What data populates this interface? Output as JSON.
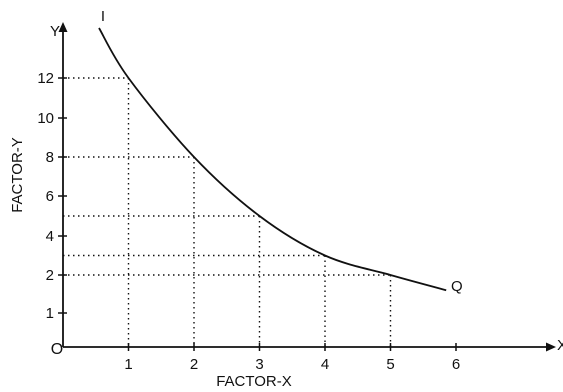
{
  "chart_data": {
    "type": "line",
    "title": "",
    "xlabel": "FACTOR-X",
    "ylabel": "FACTOR-Y",
    "x_axis_letter": "X",
    "y_axis_letter": "Y",
    "origin_label": "O",
    "x_ticks": [
      1,
      2,
      3,
      4,
      5,
      6
    ],
    "x_tick_labels": [
      "1",
      "2",
      "3",
      "4",
      "5",
      "6"
    ],
    "y_ticks": [
      {
        "label": "1",
        "value": 1
      },
      {
        "label": "2",
        "value": 2
      },
      {
        "label": "4",
        "value": 4
      },
      {
        "label": "6",
        "value": 6
      },
      {
        "label": "8",
        "value": 8
      },
      {
        "label": "10",
        "value": 10
      },
      {
        "label": "12",
        "value": 12
      }
    ],
    "series": [
      {
        "name": "",
        "start_label": "I",
        "end_label": "Q",
        "x": [
          0.55,
          1,
          2,
          3,
          4,
          5,
          5.85
        ],
        "y": [
          14.5,
          12,
          8,
          5,
          3,
          2,
          1.6
        ]
      }
    ],
    "dotted_guides": [
      {
        "x": 1,
        "y": 12
      },
      {
        "x": 2,
        "y": 8
      },
      {
        "x": 3,
        "y": 5
      },
      {
        "x": 4,
        "y": 3
      },
      {
        "x": 5,
        "y": 2
      }
    ],
    "xlim": [
      0,
      7
    ],
    "ylim": [
      0,
      15
    ],
    "grid": false,
    "legend": "none",
    "colors": {
      "line": "#111111",
      "guide": "#111111",
      "axis": "#111111"
    }
  }
}
